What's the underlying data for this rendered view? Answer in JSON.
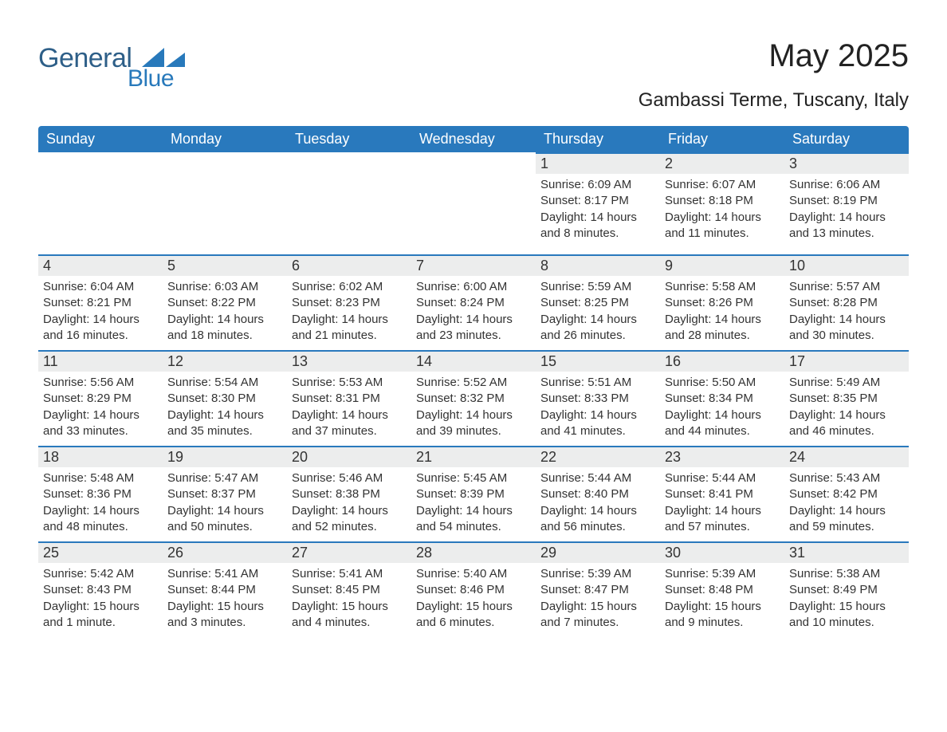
{
  "logo": {
    "word1": "General",
    "word2": "Blue",
    "accent_color": "#2879bb",
    "text_color": "#2e5f88"
  },
  "title": "May 2025",
  "location": "Gambassi Terme, Tuscany, Italy",
  "header_bg": "#2979bd",
  "header_fg": "#ffffff",
  "daynum_bg": "#eceded",
  "daynum_border": "#2979bd",
  "page_bg": "#ffffff",
  "text_color": "#333333",
  "font_family": "Arial, Helvetica, sans-serif",
  "day_headers": [
    "Sunday",
    "Monday",
    "Tuesday",
    "Wednesday",
    "Thursday",
    "Friday",
    "Saturday"
  ],
  "weeks": [
    [
      null,
      null,
      null,
      null,
      {
        "day": "1",
        "sunrise": "Sunrise: 6:09 AM",
        "sunset": "Sunset: 8:17 PM",
        "daylight1": "Daylight: 14 hours",
        "daylight2": "and 8 minutes."
      },
      {
        "day": "2",
        "sunrise": "Sunrise: 6:07 AM",
        "sunset": "Sunset: 8:18 PM",
        "daylight1": "Daylight: 14 hours",
        "daylight2": "and 11 minutes."
      },
      {
        "day": "3",
        "sunrise": "Sunrise: 6:06 AM",
        "sunset": "Sunset: 8:19 PM",
        "daylight1": "Daylight: 14 hours",
        "daylight2": "and 13 minutes."
      }
    ],
    [
      {
        "day": "4",
        "sunrise": "Sunrise: 6:04 AM",
        "sunset": "Sunset: 8:21 PM",
        "daylight1": "Daylight: 14 hours",
        "daylight2": "and 16 minutes."
      },
      {
        "day": "5",
        "sunrise": "Sunrise: 6:03 AM",
        "sunset": "Sunset: 8:22 PM",
        "daylight1": "Daylight: 14 hours",
        "daylight2": "and 18 minutes."
      },
      {
        "day": "6",
        "sunrise": "Sunrise: 6:02 AM",
        "sunset": "Sunset: 8:23 PM",
        "daylight1": "Daylight: 14 hours",
        "daylight2": "and 21 minutes."
      },
      {
        "day": "7",
        "sunrise": "Sunrise: 6:00 AM",
        "sunset": "Sunset: 8:24 PM",
        "daylight1": "Daylight: 14 hours",
        "daylight2": "and 23 minutes."
      },
      {
        "day": "8",
        "sunrise": "Sunrise: 5:59 AM",
        "sunset": "Sunset: 8:25 PM",
        "daylight1": "Daylight: 14 hours",
        "daylight2": "and 26 minutes."
      },
      {
        "day": "9",
        "sunrise": "Sunrise: 5:58 AM",
        "sunset": "Sunset: 8:26 PM",
        "daylight1": "Daylight: 14 hours",
        "daylight2": "and 28 minutes."
      },
      {
        "day": "10",
        "sunrise": "Sunrise: 5:57 AM",
        "sunset": "Sunset: 8:28 PM",
        "daylight1": "Daylight: 14 hours",
        "daylight2": "and 30 minutes."
      }
    ],
    [
      {
        "day": "11",
        "sunrise": "Sunrise: 5:56 AM",
        "sunset": "Sunset: 8:29 PM",
        "daylight1": "Daylight: 14 hours",
        "daylight2": "and 33 minutes."
      },
      {
        "day": "12",
        "sunrise": "Sunrise: 5:54 AM",
        "sunset": "Sunset: 8:30 PM",
        "daylight1": "Daylight: 14 hours",
        "daylight2": "and 35 minutes."
      },
      {
        "day": "13",
        "sunrise": "Sunrise: 5:53 AM",
        "sunset": "Sunset: 8:31 PM",
        "daylight1": "Daylight: 14 hours",
        "daylight2": "and 37 minutes."
      },
      {
        "day": "14",
        "sunrise": "Sunrise: 5:52 AM",
        "sunset": "Sunset: 8:32 PM",
        "daylight1": "Daylight: 14 hours",
        "daylight2": "and 39 minutes."
      },
      {
        "day": "15",
        "sunrise": "Sunrise: 5:51 AM",
        "sunset": "Sunset: 8:33 PM",
        "daylight1": "Daylight: 14 hours",
        "daylight2": "and 41 minutes."
      },
      {
        "day": "16",
        "sunrise": "Sunrise: 5:50 AM",
        "sunset": "Sunset: 8:34 PM",
        "daylight1": "Daylight: 14 hours",
        "daylight2": "and 44 minutes."
      },
      {
        "day": "17",
        "sunrise": "Sunrise: 5:49 AM",
        "sunset": "Sunset: 8:35 PM",
        "daylight1": "Daylight: 14 hours",
        "daylight2": "and 46 minutes."
      }
    ],
    [
      {
        "day": "18",
        "sunrise": "Sunrise: 5:48 AM",
        "sunset": "Sunset: 8:36 PM",
        "daylight1": "Daylight: 14 hours",
        "daylight2": "and 48 minutes."
      },
      {
        "day": "19",
        "sunrise": "Sunrise: 5:47 AM",
        "sunset": "Sunset: 8:37 PM",
        "daylight1": "Daylight: 14 hours",
        "daylight2": "and 50 minutes."
      },
      {
        "day": "20",
        "sunrise": "Sunrise: 5:46 AM",
        "sunset": "Sunset: 8:38 PM",
        "daylight1": "Daylight: 14 hours",
        "daylight2": "and 52 minutes."
      },
      {
        "day": "21",
        "sunrise": "Sunrise: 5:45 AM",
        "sunset": "Sunset: 8:39 PM",
        "daylight1": "Daylight: 14 hours",
        "daylight2": "and 54 minutes."
      },
      {
        "day": "22",
        "sunrise": "Sunrise: 5:44 AM",
        "sunset": "Sunset: 8:40 PM",
        "daylight1": "Daylight: 14 hours",
        "daylight2": "and 56 minutes."
      },
      {
        "day": "23",
        "sunrise": "Sunrise: 5:44 AM",
        "sunset": "Sunset: 8:41 PM",
        "daylight1": "Daylight: 14 hours",
        "daylight2": "and 57 minutes."
      },
      {
        "day": "24",
        "sunrise": "Sunrise: 5:43 AM",
        "sunset": "Sunset: 8:42 PM",
        "daylight1": "Daylight: 14 hours",
        "daylight2": "and 59 minutes."
      }
    ],
    [
      {
        "day": "25",
        "sunrise": "Sunrise: 5:42 AM",
        "sunset": "Sunset: 8:43 PM",
        "daylight1": "Daylight: 15 hours",
        "daylight2": "and 1 minute."
      },
      {
        "day": "26",
        "sunrise": "Sunrise: 5:41 AM",
        "sunset": "Sunset: 8:44 PM",
        "daylight1": "Daylight: 15 hours",
        "daylight2": "and 3 minutes."
      },
      {
        "day": "27",
        "sunrise": "Sunrise: 5:41 AM",
        "sunset": "Sunset: 8:45 PM",
        "daylight1": "Daylight: 15 hours",
        "daylight2": "and 4 minutes."
      },
      {
        "day": "28",
        "sunrise": "Sunrise: 5:40 AM",
        "sunset": "Sunset: 8:46 PM",
        "daylight1": "Daylight: 15 hours",
        "daylight2": "and 6 minutes."
      },
      {
        "day": "29",
        "sunrise": "Sunrise: 5:39 AM",
        "sunset": "Sunset: 8:47 PM",
        "daylight1": "Daylight: 15 hours",
        "daylight2": "and 7 minutes."
      },
      {
        "day": "30",
        "sunrise": "Sunrise: 5:39 AM",
        "sunset": "Sunset: 8:48 PM",
        "daylight1": "Daylight: 15 hours",
        "daylight2": "and 9 minutes."
      },
      {
        "day": "31",
        "sunrise": "Sunrise: 5:38 AM",
        "sunset": "Sunset: 8:49 PM",
        "daylight1": "Daylight: 15 hours",
        "daylight2": "and 10 minutes."
      }
    ]
  ]
}
